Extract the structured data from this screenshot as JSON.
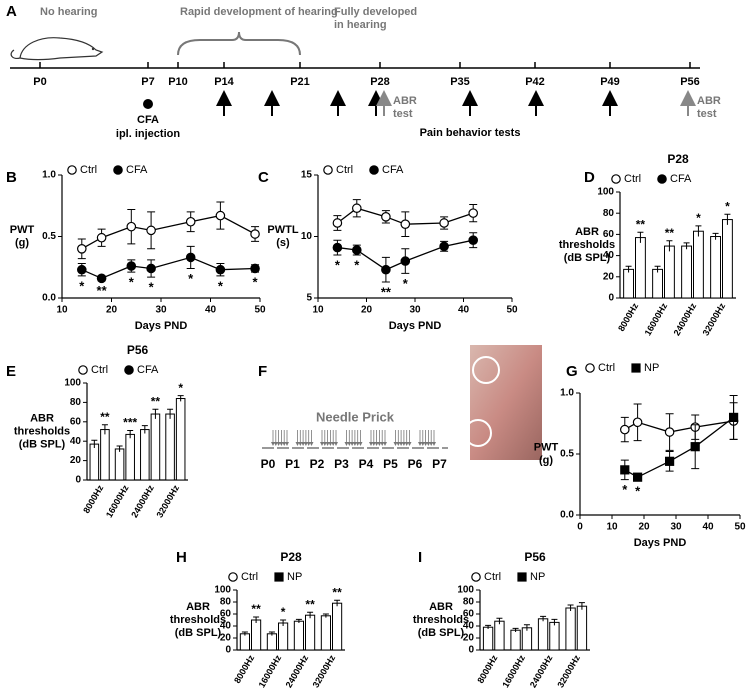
{
  "timeline": {
    "label": "A",
    "phases": [
      [
        "No hearing"
      ],
      [
        "Rapid development of hearing"
      ],
      [
        "Fully developed",
        "in hearing"
      ]
    ],
    "days": [
      "P0",
      "P7",
      "P10",
      "P14",
      "P21",
      "P28",
      "P35",
      "P42",
      "P49",
      "P56"
    ],
    "injection": [
      "CFA",
      "ipl. injection"
    ],
    "abr_tests": [
      [
        "ABR",
        "test"
      ],
      [
        "ABR",
        "test"
      ]
    ],
    "pain_tests": "Pain behavior tests"
  },
  "needle_prick": {
    "label": "F",
    "title": "Needle Prick",
    "days": [
      "P0",
      "P1",
      "P2",
      "P3",
      "P4",
      "P5",
      "P6",
      "P7"
    ]
  },
  "chart_data": [
    {
      "type": "line",
      "label": "B",
      "ylabel_lines": [
        "PWT",
        "(g)"
      ],
      "xlabel": "Days PND",
      "x": [
        14,
        18,
        24,
        28,
        36,
        42,
        49
      ],
      "xlim": [
        10,
        50
      ],
      "xticks": [
        10,
        20,
        30,
        40,
        50
      ],
      "ylim": [
        0,
        1
      ],
      "yticks": [
        {
          "value": 0,
          "label": "0.0"
        },
        0.5,
        {
          "value": 1,
          "label": "1.0"
        }
      ],
      "series": [
        {
          "name": "Ctrl",
          "color": "#ffffff",
          "marker": "circle",
          "values": [
            0.4,
            0.49,
            0.58,
            0.55,
            0.62,
            0.67,
            0.52
          ],
          "errors": [
            0.08,
            0.07,
            0.14,
            0.15,
            0.08,
            0.11,
            0.06
          ],
          "sig": [
            null,
            null,
            null,
            null,
            null,
            null,
            null
          ]
        },
        {
          "name": "CFA",
          "color": "#000000",
          "marker": "circle",
          "values": [
            0.23,
            0.16,
            0.26,
            0.24,
            0.33,
            0.23,
            0.24
          ],
          "errors": [
            0.05,
            0.02,
            0.05,
            0.07,
            0.09,
            0.05,
            0.03
          ],
          "sig": [
            "*",
            "**",
            "*",
            "*",
            "*",
            "*",
            "*"
          ]
        }
      ]
    },
    {
      "type": "line",
      "label": "C",
      "ylabel_lines": [
        "PWTL",
        "(s)"
      ],
      "xlabel": "Days PND",
      "x": [
        14,
        18,
        24,
        28,
        36,
        42
      ],
      "xlim": [
        10,
        50
      ],
      "xticks": [
        10,
        20,
        30,
        40,
        50
      ],
      "ylim": [
        5,
        15
      ],
      "yticks": [
        5,
        10,
        15
      ],
      "series": [
        {
          "name": "Ctrl",
          "color": "#ffffff",
          "marker": "circle",
          "values": [
            11.1,
            12.3,
            11.6,
            11.0,
            11.1,
            11.9
          ],
          "errors": [
            0.6,
            0.7,
            0.5,
            1.0,
            0.5,
            0.7
          ],
          "sig": [
            null,
            null,
            null,
            null,
            null,
            null
          ]
        },
        {
          "name": "CFA",
          "color": "#000000",
          "marker": "circle",
          "values": [
            9.1,
            8.9,
            7.3,
            8.0,
            9.2,
            9.7
          ],
          "errors": [
            0.6,
            0.4,
            1.0,
            1.0,
            0.4,
            0.6
          ],
          "sig": [
            "*",
            "*",
            "**",
            "*",
            null,
            null
          ]
        }
      ]
    },
    {
      "type": "bar",
      "label": "D",
      "title": "P28",
      "ylabel_lines": [
        "ABR",
        "thresholds",
        "(dB SPL)"
      ],
      "categories": [
        "8000Hz",
        "16000Hz",
        "24000Hz",
        "32000Hz"
      ],
      "ylim": [
        0,
        100
      ],
      "yticks": [
        0,
        20,
        40,
        60,
        80,
        100
      ],
      "series": [
        {
          "name": "Ctrl",
          "color": "#ffffff",
          "marker": "circle",
          "values": [
            27,
            27,
            49,
            58
          ],
          "errors": [
            3,
            3,
            3,
            3
          ],
          "sig": [
            null,
            null,
            null,
            null
          ]
        },
        {
          "name": "CFA",
          "color": "#000000",
          "marker": "circle",
          "values": [
            57,
            49,
            63,
            74
          ],
          "errors": [
            5,
            5,
            5,
            5
          ],
          "sig": [
            "**",
            "**",
            "*",
            "*"
          ]
        }
      ]
    },
    {
      "type": "bar",
      "label": "E",
      "title": "P56",
      "ylabel_lines": [
        "ABR",
        "thresholds",
        "(dB SPL)"
      ],
      "categories": [
        "8000Hz",
        "16000Hz",
        "24000Hz",
        "32000Hz"
      ],
      "ylim": [
        0,
        100
      ],
      "yticks": [
        0,
        20,
        40,
        60,
        80,
        100
      ],
      "series": [
        {
          "name": "Ctrl",
          "color": "#ffffff",
          "marker": "circle",
          "values": [
            37,
            32,
            52,
            68
          ],
          "errors": [
            4,
            3,
            4,
            5
          ],
          "sig": [
            null,
            null,
            null,
            null
          ]
        },
        {
          "name": "CFA",
          "color": "#000000",
          "marker": "circle",
          "values": [
            52,
            47,
            68,
            84
          ],
          "errors": [
            5,
            4,
            5,
            3
          ],
          "sig": [
            "**",
            "***",
            "**",
            "*"
          ]
        }
      ]
    },
    {
      "type": "line",
      "label": "G",
      "ylabel_lines": [
        "PWT",
        "(g)"
      ],
      "xlabel": "Days PND",
      "x": [
        14,
        18,
        28,
        36,
        48
      ],
      "xlim": [
        0,
        50
      ],
      "xticks": [
        0,
        10,
        20,
        30,
        40,
        50
      ],
      "ylim": [
        0,
        1
      ],
      "yticks": [
        {
          "value": 0,
          "label": "0.0"
        },
        0.5,
        {
          "value": 1,
          "label": "1.0"
        }
      ],
      "series": [
        {
          "name": "Ctrl",
          "color": "#ffffff",
          "marker": "circle",
          "values": [
            0.7,
            0.76,
            0.68,
            0.72,
            0.77
          ],
          "errors": [
            0.1,
            0.15,
            0.15,
            0.1,
            0.15
          ],
          "sig": [
            null,
            null,
            null,
            null,
            null
          ]
        },
        {
          "name": "NP",
          "color": "#000000",
          "marker": "square",
          "values": [
            0.37,
            0.31,
            0.44,
            0.56,
            0.8
          ],
          "errors": [
            0.08,
            0.03,
            0.08,
            0.18,
            0.18
          ],
          "sig": [
            "*",
            "*",
            null,
            null,
            null
          ]
        }
      ]
    },
    {
      "type": "bar",
      "label": "H",
      "title": "P28",
      "ylabel_lines": [
        "ABR",
        "thresholds",
        "(dB SPL)"
      ],
      "categories": [
        "8000Hz",
        "16000Hz",
        "24000Hz",
        "32000Hz"
      ],
      "ylim": [
        0,
        100
      ],
      "yticks": [
        0,
        20,
        40,
        60,
        80,
        100
      ],
      "series": [
        {
          "name": "Ctrl",
          "color": "#ffffff",
          "marker": "circle",
          "values": [
            27,
            27,
            48,
            57
          ],
          "errors": [
            3,
            3,
            3,
            3
          ],
          "sig": [
            null,
            null,
            null,
            null
          ]
        },
        {
          "name": "NP",
          "color": "#000000",
          "marker": "square",
          "values": [
            50,
            45,
            58,
            78
          ],
          "errors": [
            5,
            5,
            5,
            5
          ],
          "sig": [
            "**",
            "*",
            "**",
            "**"
          ]
        }
      ]
    },
    {
      "type": "bar",
      "label": "I",
      "title": "P56",
      "ylabel_lines": [
        "ABR",
        "thresholds",
        "(dB SPL)"
      ],
      "categories": [
        "8000Hz",
        "16000Hz",
        "24000Hz",
        "32000Hz"
      ],
      "ylim": [
        0,
        100
      ],
      "yticks": [
        0,
        20,
        40,
        60,
        80,
        100
      ],
      "series": [
        {
          "name": "Ctrl",
          "color": "#ffffff",
          "marker": "circle",
          "values": [
            38,
            33,
            52,
            70
          ],
          "errors": [
            3,
            3,
            4,
            5
          ],
          "sig": [
            null,
            null,
            null,
            null
          ]
        },
        {
          "name": "NP",
          "color": "#000000",
          "marker": "square",
          "values": [
            48,
            37,
            46,
            73
          ],
          "errors": [
            5,
            5,
            5,
            6
          ],
          "sig": [
            null,
            null,
            null,
            null
          ]
        }
      ]
    }
  ]
}
